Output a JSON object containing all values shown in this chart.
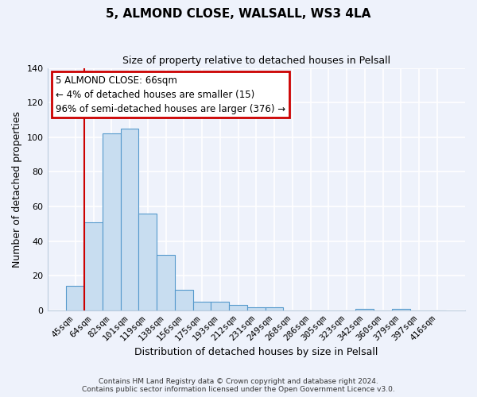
{
  "title": "5, ALMOND CLOSE, WALSALL, WS3 4LA",
  "subtitle": "Size of property relative to detached houses in Pelsall",
  "xlabel": "Distribution of detached houses by size in Pelsall",
  "ylabel": "Number of detached properties",
  "bar_labels": [
    "45sqm",
    "64sqm",
    "82sqm",
    "101sqm",
    "119sqm",
    "138sqm",
    "156sqm",
    "175sqm",
    "193sqm",
    "212sqm",
    "231sqm",
    "249sqm",
    "268sqm",
    "286sqm",
    "305sqm",
    "323sqm",
    "342sqm",
    "360sqm",
    "379sqm",
    "397sqm",
    "416sqm"
  ],
  "bar_values": [
    14,
    51,
    102,
    105,
    56,
    32,
    12,
    5,
    5,
    3,
    2,
    2,
    0,
    0,
    0,
    0,
    1,
    0,
    1,
    0,
    0
  ],
  "bar_color": "#c8ddf0",
  "bar_edge_color": "#5599cc",
  "annotation_title": "5 ALMOND CLOSE: 66sqm",
  "annotation_line1": "← 4% of detached houses are smaller (15)",
  "annotation_line2": "96% of semi-detached houses are larger (376) →",
  "annotation_box_color": "#ffffff",
  "annotation_box_edge_color": "#cc0000",
  "property_line_color": "#cc0000",
  "ylim": [
    0,
    140
  ],
  "yticks": [
    0,
    20,
    40,
    60,
    80,
    100,
    120,
    140
  ],
  "footer1": "Contains HM Land Registry data © Crown copyright and database right 2024.",
  "footer2": "Contains public sector information licensed under the Open Government Licence v3.0.",
  "bg_color": "#eef2fb",
  "grid_color": "#ffffff",
  "spine_color": "#bbccdd"
}
